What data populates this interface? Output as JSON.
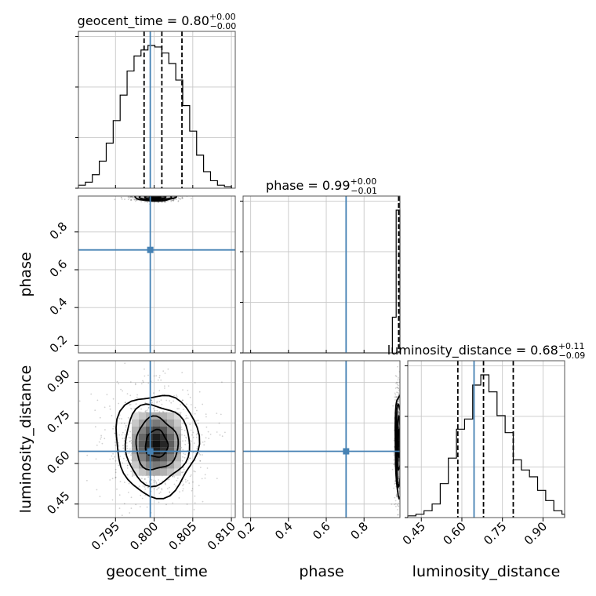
{
  "chart_data": {
    "type": "corner",
    "parameters": [
      "geocent_time",
      "phase",
      "luminosity_distance"
    ],
    "truth_color": "#4682b4",
    "truths": {
      "geocent_time": 0.7995,
      "phase": 0.705,
      "luminosity_distance": 0.645
    },
    "ranges": {
      "geocent_time": [
        0.7902,
        0.8105
      ],
      "phase": [
        0.16,
        0.99
      ],
      "luminosity_distance": [
        0.4,
        0.98
      ]
    },
    "ticks": {
      "geocent_time": [
        {
          "v": 0.795,
          "label": "0.795"
        },
        {
          "v": 0.8,
          "label": "0.800"
        },
        {
          "v": 0.805,
          "label": "0.805"
        },
        {
          "v": 0.81,
          "label": "0.810"
        }
      ],
      "phase_x": [
        {
          "v": 0.2,
          "label": "0.2"
        },
        {
          "v": 0.4,
          "label": "0.4"
        },
        {
          "v": 0.6,
          "label": "0.6"
        },
        {
          "v": 0.8,
          "label": "0.8"
        }
      ],
      "phase_y": [
        {
          "v": 0.2,
          "label": "0.2"
        },
        {
          "v": 0.4,
          "label": "0.4"
        },
        {
          "v": 0.6,
          "label": "0.6"
        },
        {
          "v": 0.8,
          "label": "0.8"
        }
      ],
      "luminosity_distance": [
        {
          "v": 0.45,
          "label": "0.45"
        },
        {
          "v": 0.6,
          "label": "0.60"
        },
        {
          "v": 0.75,
          "label": "0.75"
        },
        {
          "v": 0.9,
          "label": "0.90"
        }
      ]
    },
    "marginals": [
      {
        "param": "geocent_time",
        "title": {
          "text": "geocent_time = 0.80",
          "sup": "+0.00",
          "sub": "−0.00"
        },
        "quantiles": [
          0.7987,
          0.801,
          0.8036
        ],
        "bin_edges": [
          0.7902,
          0.7911,
          0.792,
          0.7929,
          0.7938,
          0.7947,
          0.7956,
          0.7965,
          0.7974,
          0.7983,
          0.7992,
          0.8001,
          0.801,
          0.8019,
          0.8028,
          0.8037,
          0.8046,
          0.8055,
          0.8064,
          0.8073,
          0.8082,
          0.8091,
          0.81
        ],
        "counts": [
          2,
          4,
          9,
          18,
          30,
          45,
          62,
          78,
          88,
          92,
          95,
          94,
          90,
          83,
          72,
          55,
          38,
          22,
          11,
          5,
          2,
          1
        ]
      },
      {
        "param": "phase",
        "title": {
          "text": "phase = 0.99",
          "sup": "+0.00",
          "sub": "−0.01"
        },
        "quantiles": [
          0.983,
          0.988,
          0.99
        ],
        "bin_edges": [
          0.16,
          0.95,
          0.97,
          0.99
        ],
        "counts": [
          0,
          1.8,
          7.2
        ]
      },
      {
        "param": "luminosity_distance",
        "title": {
          "text": "luminosity_distance = 0.68",
          "sup": "+0.11",
          "sub": "−0.09"
        },
        "quantiles": [
          0.585,
          0.68,
          0.79
        ],
        "bin_edges": [
          0.4,
          0.43,
          0.46,
          0.49,
          0.52,
          0.55,
          0.58,
          0.61,
          0.64,
          0.67,
          0.7,
          0.73,
          0.76,
          0.79,
          0.82,
          0.85,
          0.88,
          0.91,
          0.94,
          0.97,
          0.98
        ],
        "counts": [
          1,
          2,
          4,
          8,
          20,
          35,
          52,
          58,
          78,
          84,
          74,
          60,
          50,
          34,
          28,
          24,
          16,
          10,
          4,
          2
        ]
      }
    ],
    "joint_2d": [
      {
        "x": "geocent_time",
        "y": "phase",
        "center": [
          0.8001,
          0.985
        ],
        "spread": [
          0.0013,
          0.01
        ]
      },
      {
        "x": "geocent_time",
        "y": "luminosity_distance",
        "center": [
          0.8003,
          0.672
        ],
        "spread": [
          0.0026,
          0.092
        ]
      },
      {
        "x": "phase",
        "y": "luminosity_distance",
        "center": [
          0.985,
          0.672
        ],
        "spread": [
          0.01,
          0.092
        ]
      }
    ],
    "grid": true
  }
}
